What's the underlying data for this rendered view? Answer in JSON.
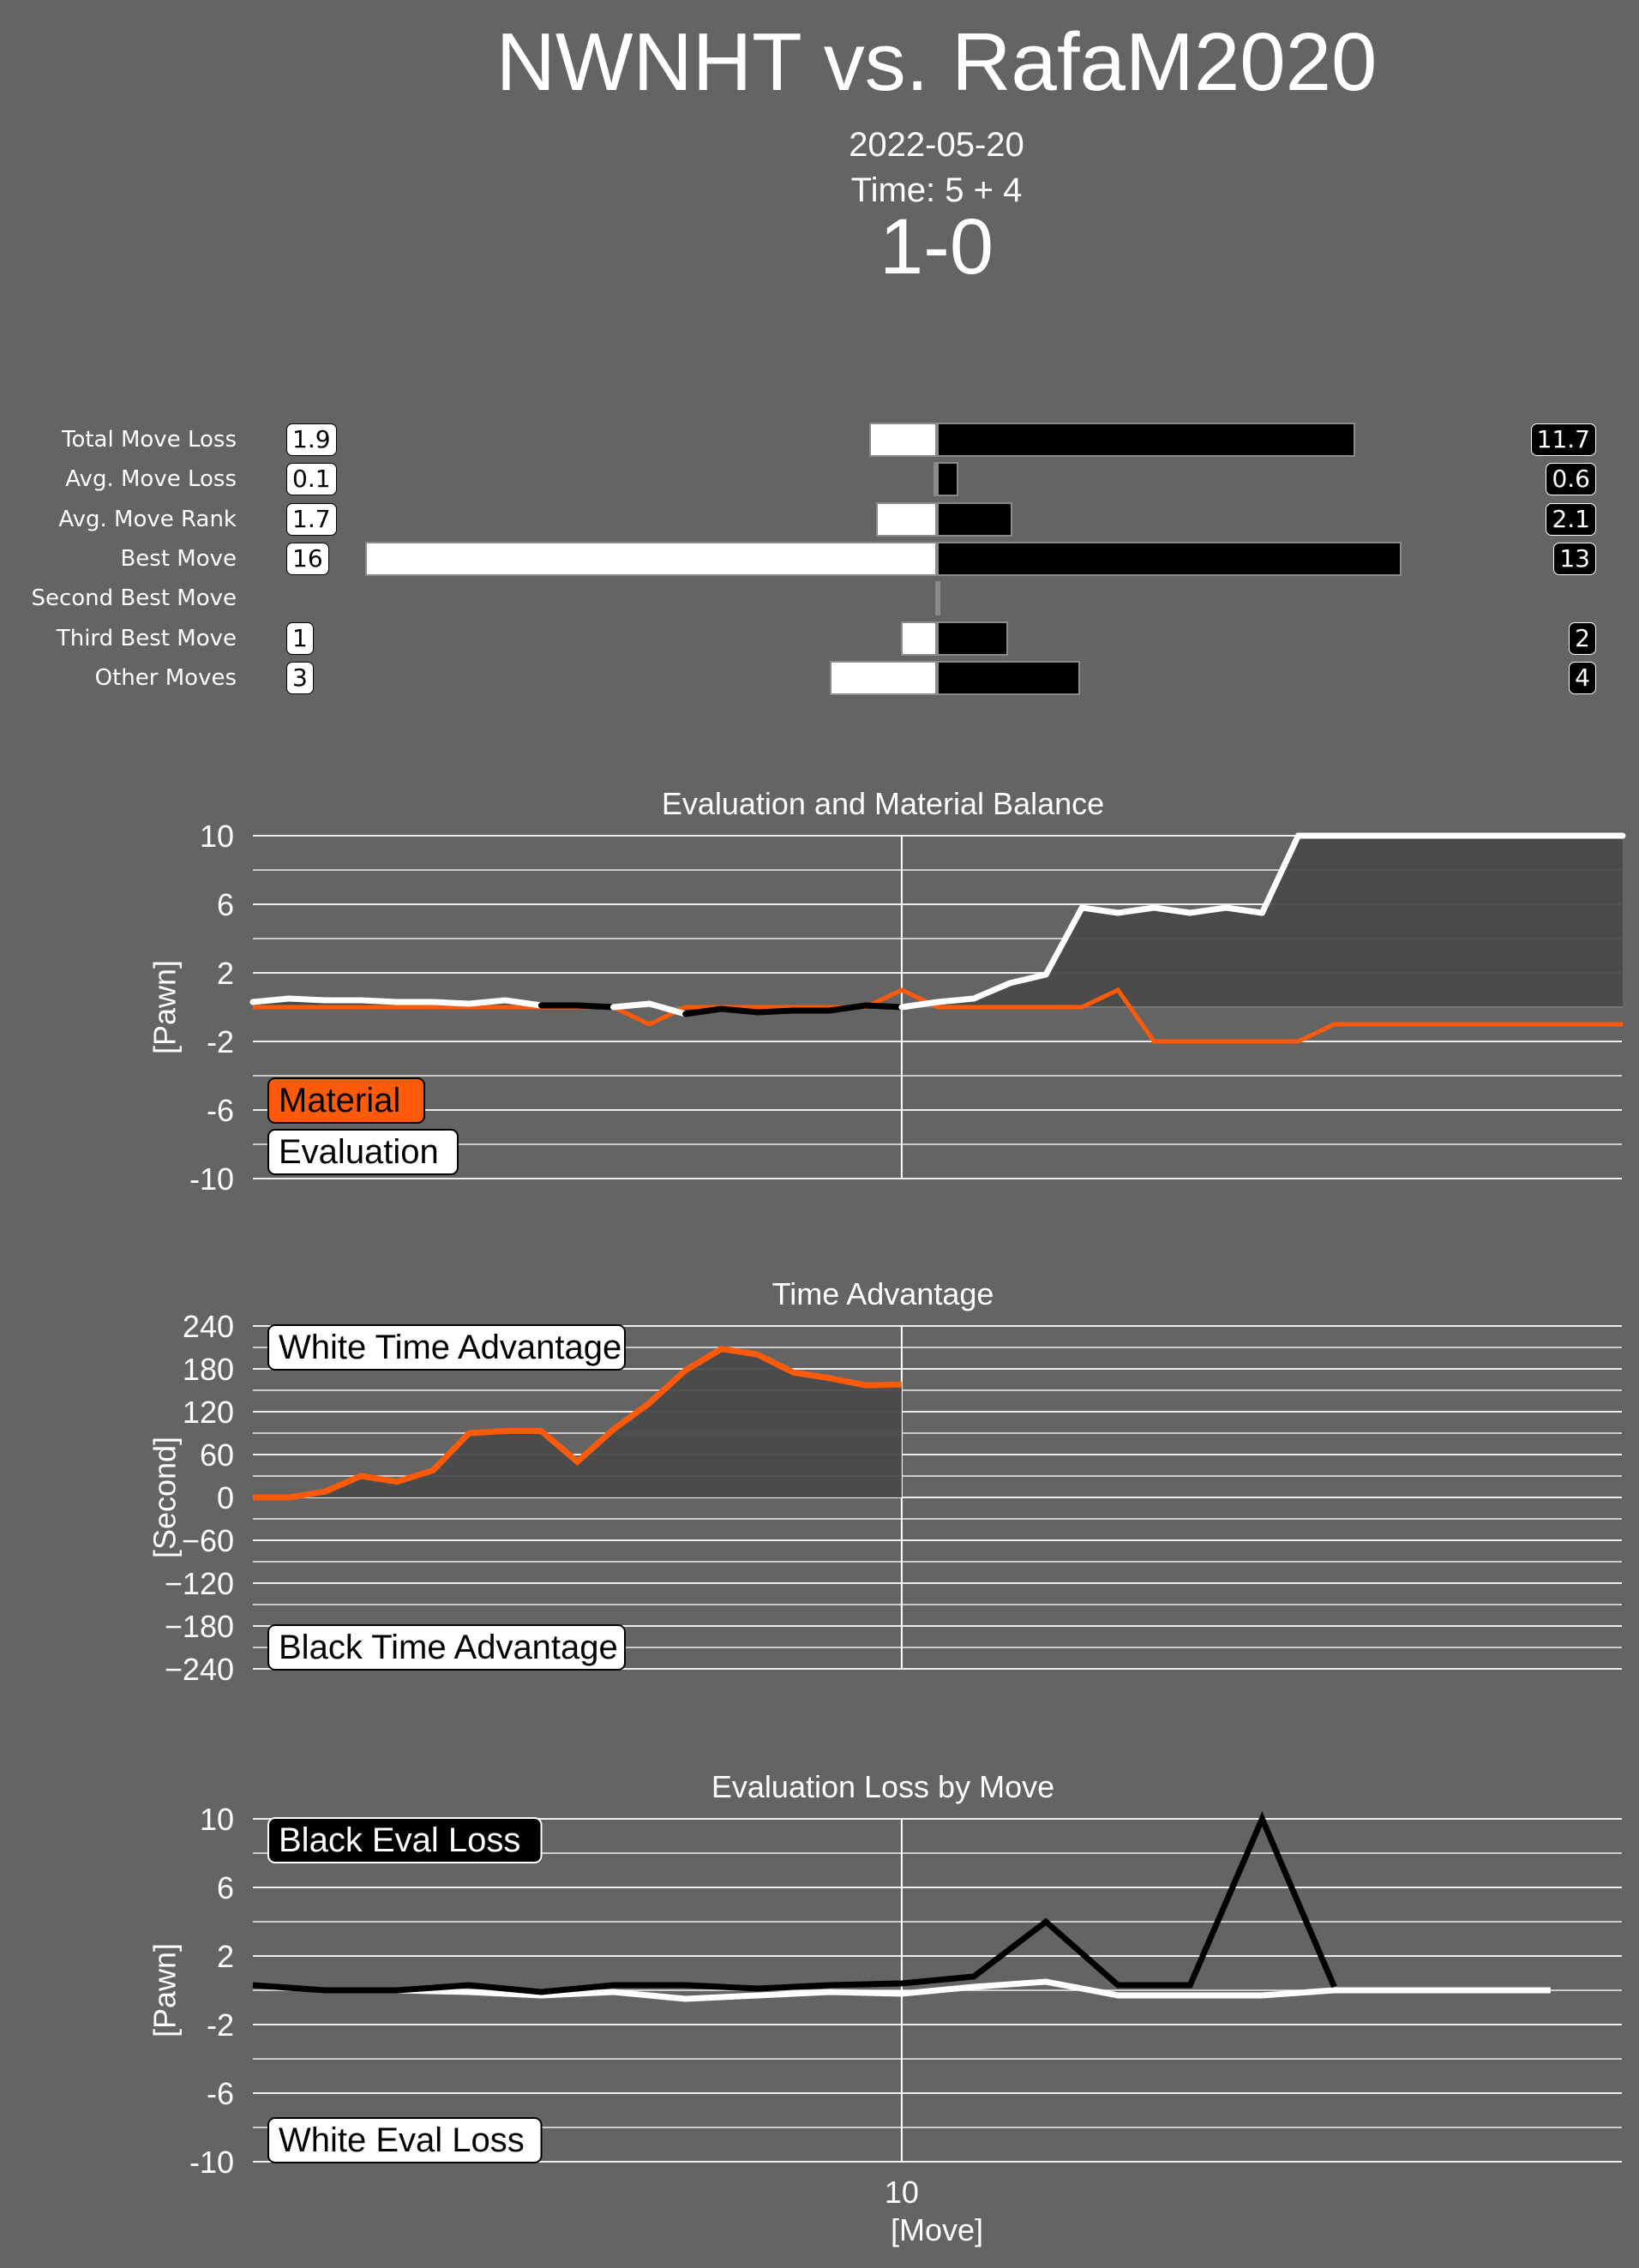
{
  "header": {
    "title": "NWNHT vs. RafaM2020",
    "date": "2022-05-20",
    "time_control": "Time: 5 + 4",
    "result": "1-0"
  },
  "colors": {
    "background": "#646464",
    "white_side": "#ffffff",
    "black_side": "#000000",
    "material": "#ff5a0a",
    "fill": "#4a4a4a"
  },
  "summary": {
    "rows": [
      {
        "label": "Total Move Loss",
        "white": "1.9",
        "black": "11.7",
        "white_value": 1.9,
        "black_value": 11.7
      },
      {
        "label": "Avg. Move Loss",
        "white": "0.1",
        "black": "0.6",
        "white_value": 0.1,
        "black_value": 0.6
      },
      {
        "label": "Avg. Move Rank",
        "white": "1.7",
        "black": "2.1",
        "white_value": 1.7,
        "black_value": 2.1
      },
      {
        "label": "Best Move",
        "white": "16",
        "black": "13",
        "white_value": 16,
        "black_value": 13
      },
      {
        "label": "Second Best Move",
        "white": null,
        "black": null,
        "white_value": 0,
        "black_value": 0
      },
      {
        "label": "Third Best Move",
        "white": "1",
        "black": "2",
        "white_value": 1,
        "black_value": 2
      },
      {
        "label": "Other Moves",
        "white": "3",
        "black": "4",
        "white_value": 3,
        "black_value": 4
      }
    ]
  },
  "chart_data": [
    {
      "type": "line",
      "title": "Evaluation and Material Balance",
      "ylabel": "[Pawn]",
      "ylim": [
        -10,
        10
      ],
      "yticks": [
        "10",
        "6",
        "2",
        "-2",
        "-6",
        "-10"
      ],
      "xtick": "10",
      "legend": [
        "Material",
        "Evaluation"
      ],
      "x_start": 1,
      "x_step": 0.5,
      "series": [
        {
          "name": "Evaluation",
          "values": [
            0.3,
            0.5,
            0.4,
            0.4,
            0.3,
            0.3,
            0.2,
            0.4,
            0.1,
            0.1,
            0,
            0.2,
            -0.4,
            -0.1,
            -0.3,
            -0.2,
            -0.2,
            0.1,
            0,
            0.3,
            0.5,
            1.4,
            1.9,
            5.8,
            5.5,
            5.8,
            5.5,
            5.8,
            5.5,
            10,
            10,
            10,
            10,
            10,
            10,
            10,
            10,
            10,
            10
          ]
        },
        {
          "name": "Material",
          "values": [
            0,
            0,
            0,
            0,
            0,
            0,
            0,
            0,
            0,
            0,
            0,
            -1,
            0,
            0,
            0,
            0,
            0,
            0,
            1,
            0,
            0,
            0,
            0,
            0,
            1,
            -2,
            -2,
            -2,
            -2,
            -2,
            -1,
            -1,
            -1,
            -1,
            -1,
            -1,
            -1,
            -1,
            -1
          ]
        }
      ]
    },
    {
      "type": "area",
      "title": "Time Advantage",
      "ylabel": "[Second]",
      "ylim": [
        -240,
        240
      ],
      "yticks": [
        "240",
        "180",
        "120",
        "60",
        "0",
        "−60",
        "−120",
        "−180",
        "−240"
      ],
      "xtick": "10",
      "legend": [
        "White Time Advantage",
        "Black Time Advantage"
      ],
      "x_start": 1,
      "x_step": 1,
      "series": [
        {
          "name": "Time Advantage",
          "values": [
            0,
            0,
            8,
            30,
            22,
            38,
            90,
            93,
            93,
            50,
            95,
            132,
            178,
            208,
            200,
            175,
            167,
            157,
            158
          ]
        }
      ]
    },
    {
      "type": "line",
      "title": "Evaluation Loss by Move",
      "ylabel": "[Pawn]",
      "xlabel": "[Move]",
      "ylim": [
        -10,
        10
      ],
      "yticks": [
        "10",
        "6",
        "2",
        "-2",
        "-6",
        "-10"
      ],
      "xtick": "10",
      "legend": [
        "Black Eval Loss",
        "White Eval Loss"
      ],
      "series": [
        {
          "name": "Black Eval Loss",
          "x_start": 1,
          "values": [
            0.3,
            0,
            0,
            0.3,
            -0.1,
            0.3,
            0.3,
            0.1,
            0.3,
            0.4,
            0.8,
            4,
            0.3,
            0.3,
            10,
            0.2
          ]
        },
        {
          "name": "White Eval Loss",
          "x_start": 2,
          "values": [
            0,
            0,
            -0.1,
            -0.3,
            -0.1,
            -0.5,
            -0.3,
            -0.1,
            -0.2,
            0.2,
            0.5,
            -0.3,
            -0.3,
            -0.3,
            0,
            0,
            0,
            0
          ]
        }
      ]
    }
  ]
}
